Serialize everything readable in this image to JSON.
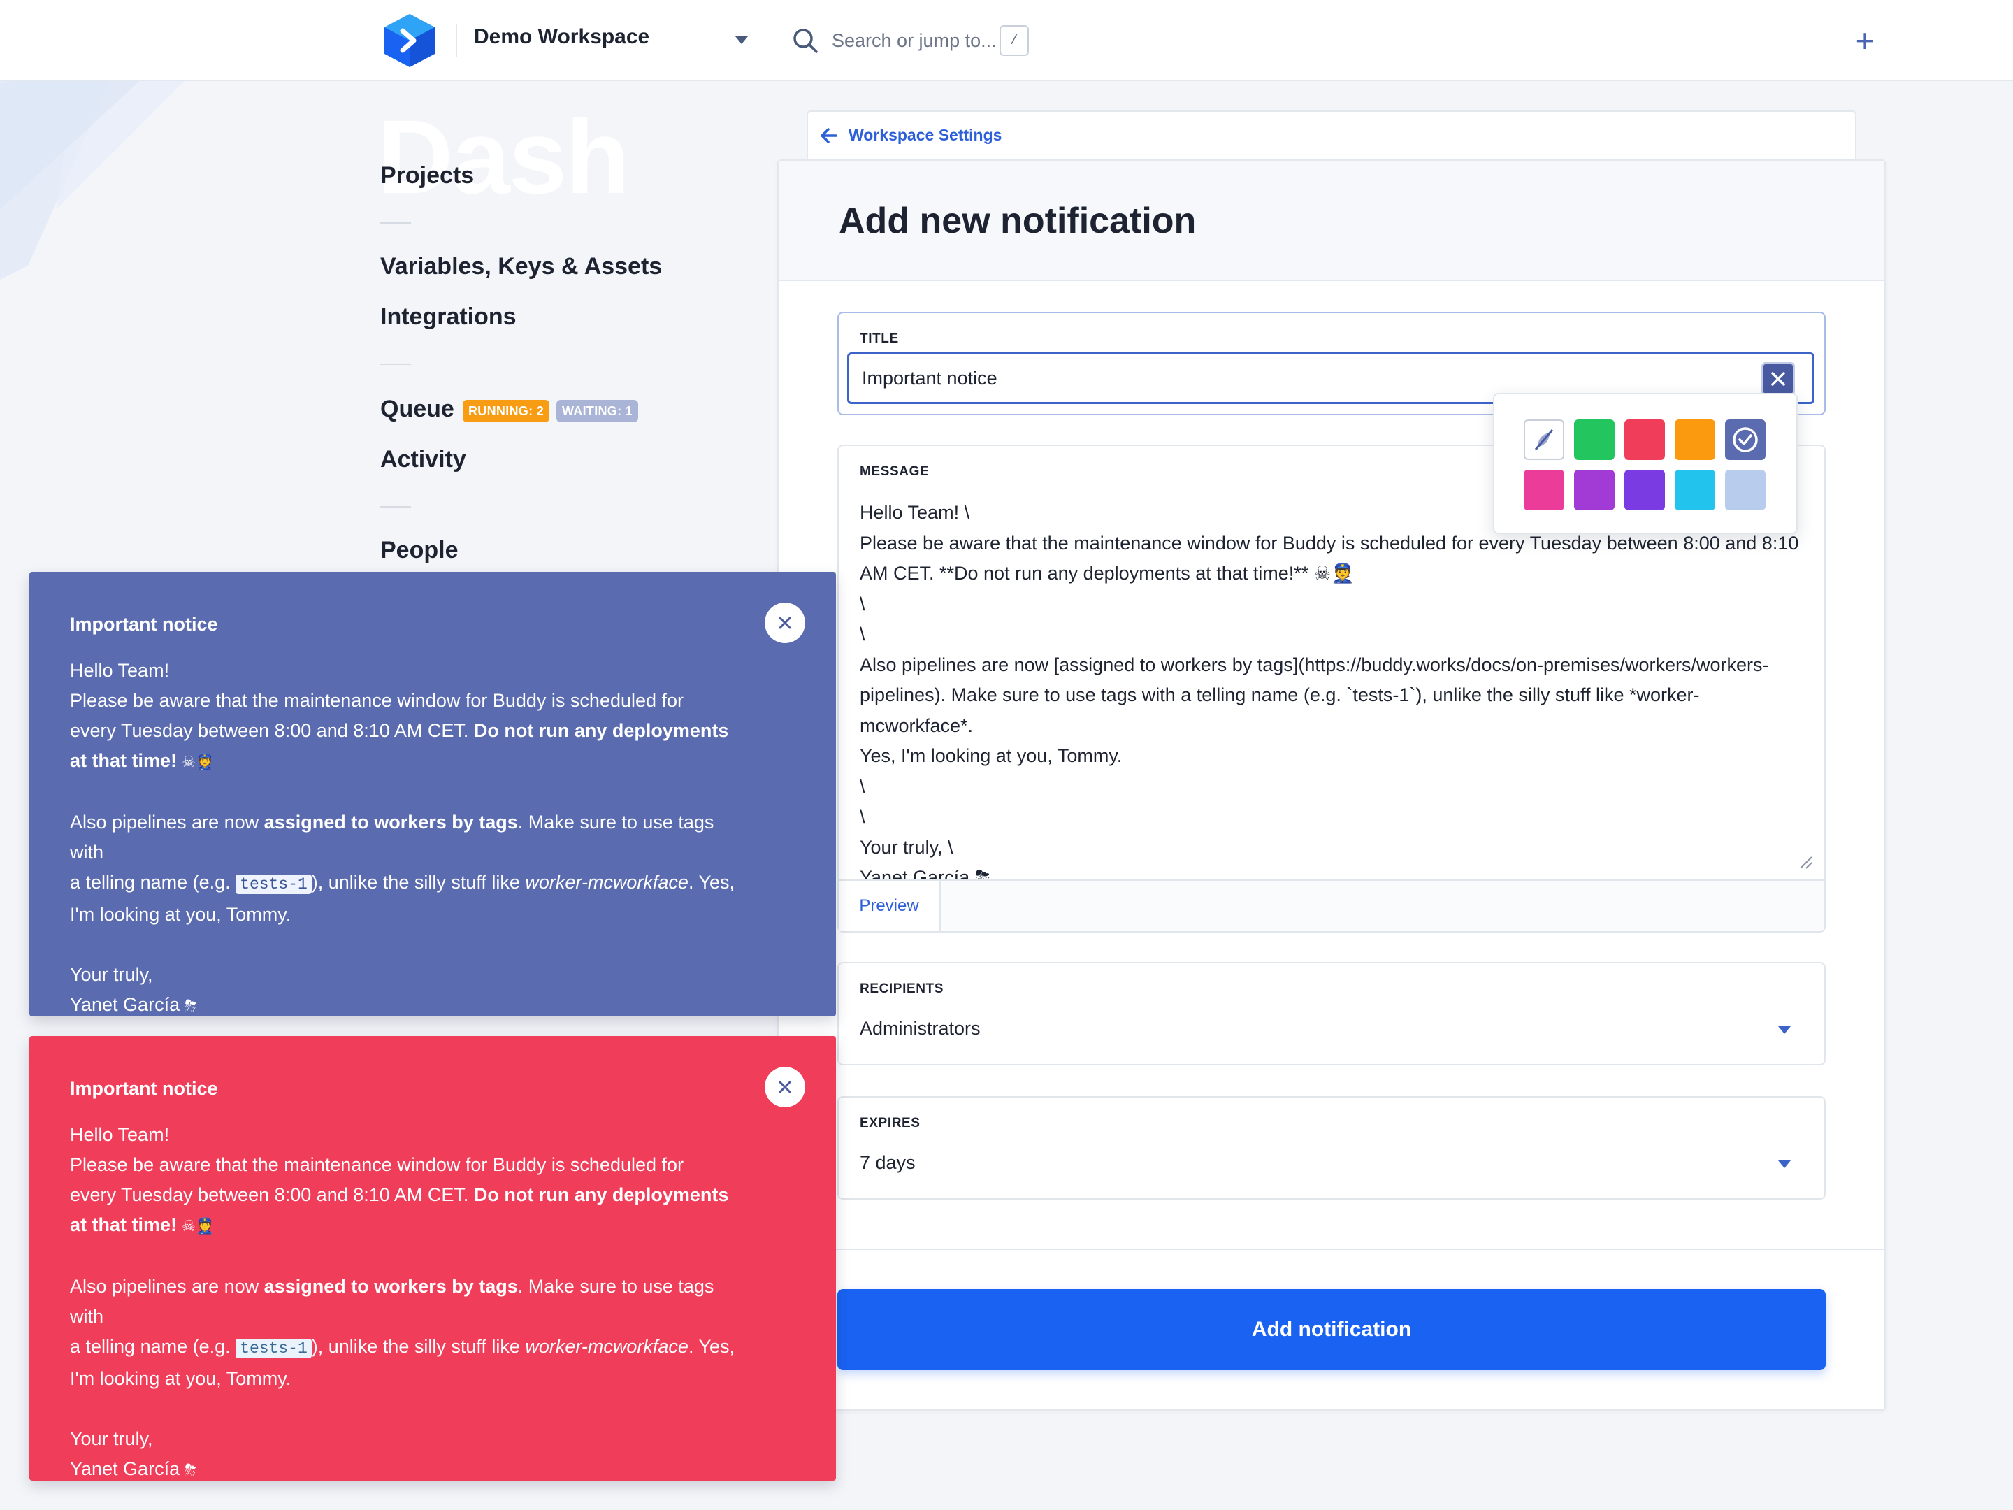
{
  "header": {
    "workspace_name": "Demo Workspace",
    "search_placeholder": "Search or jump to...",
    "search_shortcut": "/",
    "add_label": "+"
  },
  "sidebar": {
    "watermark": "Dash",
    "items": [
      {
        "label": "Projects"
      },
      {
        "label": "Variables, Keys & Assets"
      },
      {
        "label": "Integrations"
      },
      {
        "label": "Queue"
      },
      {
        "label": "Activity"
      },
      {
        "label": "People"
      }
    ],
    "queue_badges": {
      "running": "RUNNING: 2",
      "waiting": "WAITING: 1"
    }
  },
  "breadcrumb": {
    "back_label": "Workspace Settings"
  },
  "form": {
    "page_title": "Add new notification",
    "title_label": "TITLE",
    "title_value": "Important notice",
    "message_label": "MESSAGE",
    "message_value": "Hello Team! \\\nPlease be aware that the maintenance window for Buddy is scheduled for every Tuesday between 8:00 and 8:10\nAM CET. **Do not run any deployments at that time!** ☠👮\n\\\n\\\nAlso pipelines are now [assigned to workers by tags](https://buddy.works/docs/on-premises/workers/workers-\npipelines). Make sure to use tags with a telling name (e.g. `tests-1`), unlike the silly stuff like *worker-mcworkface*.\nYes, I'm looking at you, Tommy.\n\\\n\\\nYour truly, \\\nYanet García ⛈",
    "preview_tab": "Preview",
    "recipients_label": "RECIPIENTS",
    "recipients_value": "Administrators",
    "expires_label": "EXPIRES",
    "expires_value": "7 days",
    "submit_label": "Add notification"
  },
  "color_picker": {
    "swatches": [
      "none",
      "#22c55e",
      "#f03e5a",
      "#fb9a0f",
      "#5b6bb0",
      "#ec3c9a",
      "#a23ad6",
      "#7b3be2",
      "#22c3ec",
      "#b8cdee"
    ],
    "selected": "#5b6bb0"
  },
  "notices": [
    {
      "color": "#5b6bb0",
      "title": "Important notice",
      "greeting": "Hello Team!",
      "line1": "Please be aware that the maintenance window for Buddy is scheduled for",
      "line2": "every Tuesday between 8:00 and 8:10 AM CET. ",
      "line2_bold": "Do not run any deployments",
      "line3_bold": "at that time!",
      "line3_emoji": " ☠👮",
      "p2_a": "Also pipelines are now ",
      "p2_bold": "assigned to workers by tags",
      "p2_b": ". Make sure to use tags with",
      "p2_c": "a telling name (e.g. ",
      "p2_code": "tests-1",
      "p2_d": "), unlike the silly stuff like ",
      "p2_italic": "worker-mcworkface",
      "p2_e": ". Yes,",
      "p2_f": "I'm looking at you, Tommy.",
      "sign1": "Your truly,",
      "sign2": "Yanet García",
      "sign_emoji": " ⛈"
    },
    {
      "color": "#f03e5a",
      "title": "Important notice",
      "greeting": "Hello Team!",
      "line1": "Please be aware that the maintenance window for Buddy is scheduled for",
      "line2": "every Tuesday between 8:00 and 8:10 AM CET. ",
      "line2_bold": "Do not run any deployments",
      "line3_bold": "at that time!",
      "line3_emoji": " ☠👮",
      "p2_a": "Also pipelines are now ",
      "p2_bold": "assigned to workers by tags",
      "p2_b": ". Make sure to use tags with",
      "p2_c": "a telling name (e.g. ",
      "p2_code": "tests-1",
      "p2_d": "), unlike the silly stuff like ",
      "p2_italic": "worker-mcworkface",
      "p2_e": ". Yes,",
      "p2_f": "I'm looking at you, Tommy.",
      "sign1": "Your truly,",
      "sign2": "Yanet García",
      "sign_emoji": " ⛈"
    }
  ]
}
